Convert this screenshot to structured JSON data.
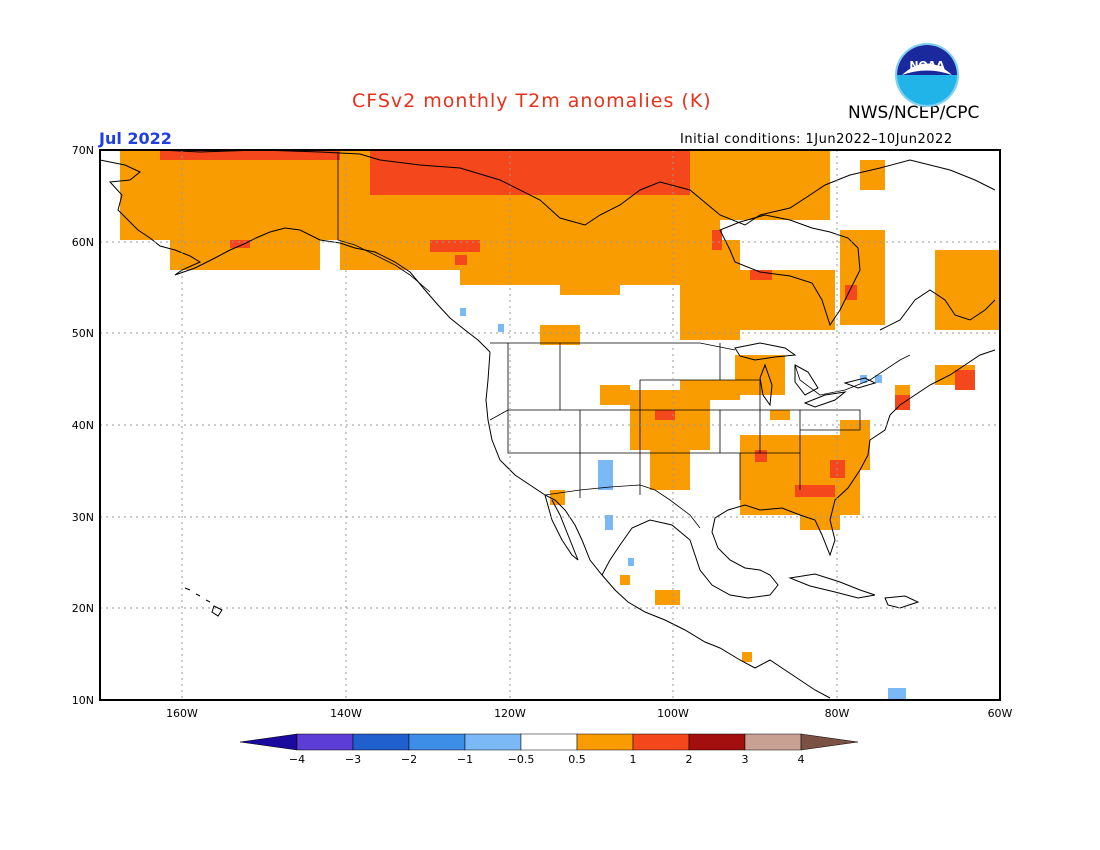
{
  "title": "CFSv2 monthly T2m anomalies (K)",
  "agency": "NWS/NCEP/CPC",
  "logo_text": "NOAA",
  "month": "Jul 2022",
  "initial_conditions": "Initial conditions: 1Jun2022–10Jun2022",
  "map": {
    "lat_labels": [
      "70N",
      "60N",
      "50N",
      "40N",
      "30N",
      "20N",
      "10N"
    ],
    "lon_labels": [
      "160W",
      "140W",
      "120W",
      "100W",
      "80W",
      "60W"
    ],
    "colors": {
      "positive_05_1": "#f99c01",
      "positive_1_2": "#f4471b",
      "negative_05_1": "#7ab9f5",
      "land_outline": "#000000",
      "grid": "#9a9a9a"
    }
  },
  "colorbar": {
    "labels": [
      "−4",
      "−3",
      "−2",
      "−1",
      "−0.5",
      "0.5",
      "1",
      "2",
      "3",
      "4"
    ],
    "colors": [
      "#1a0a9e",
      "#5c3ed6",
      "#1f5fce",
      "#3d8ee6",
      "#7ab9f5",
      "#ffffff",
      "#f99c01",
      "#f4471b",
      "#a30f0f",
      "#c9a193",
      "#7a5142"
    ]
  }
}
